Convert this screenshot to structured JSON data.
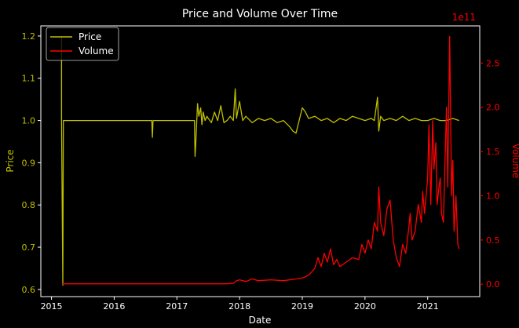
{
  "chart_data": {
    "type": "line",
    "title": "Price and Volume Over Time",
    "xlabel": "Date",
    "x_ticks": [
      "2015",
      "2016",
      "2017",
      "2018",
      "2019",
      "2020",
      "2021"
    ],
    "xlim": [
      2014.83,
      2021.83
    ],
    "left_axis": {
      "ylabel": "Price",
      "ylim": [
        0.583,
        1.224
      ],
      "ticks": [
        0.6,
        0.7,
        0.8,
        0.9,
        1.0,
        1.1,
        1.2
      ],
      "tick_labels": [
        "0.6",
        "0.7",
        "0.8",
        "0.9",
        "1.0",
        "1.1",
        "1.2"
      ]
    },
    "right_axis": {
      "ylabel": "Volume",
      "offset_label": "1e11",
      "ylim": [
        -0.14,
        2.92
      ],
      "ticks": [
        0.0,
        0.5,
        1.0,
        1.5,
        2.0,
        2.5
      ],
      "tick_labels": [
        "0.0",
        "0.5",
        "1.0",
        "1.5",
        "2.0",
        "2.5"
      ]
    },
    "grid": false,
    "legend_position": "top-left",
    "background_color": "#000000",
    "series": [
      {
        "name": "Price",
        "axis": "left",
        "color": "#bfbf00",
        "x": [
          2015.16,
          2015.16,
          2015.18,
          2015.19,
          2016.0,
          2016.5,
          2016.6,
          2016.61,
          2016.62,
          2017.0,
          2017.28,
          2017.29,
          2017.3,
          2017.31,
          2017.33,
          2017.35,
          2017.38,
          2017.4,
          2017.42,
          2017.45,
          2017.48,
          2017.5,
          2017.55,
          2017.6,
          2017.65,
          2017.7,
          2017.75,
          2017.8,
          2017.85,
          2017.9,
          2017.93,
          2017.95,
          2018.0,
          2018.05,
          2018.1,
          2018.2,
          2018.3,
          2018.4,
          2018.5,
          2018.6,
          2018.7,
          2018.8,
          2018.85,
          2018.9,
          2018.95,
          2019.0,
          2019.05,
          2019.1,
          2019.2,
          2019.3,
          2019.4,
          2019.5,
          2019.6,
          2019.7,
          2019.8,
          2019.9,
          2020.0,
          2020.1,
          2020.15,
          2020.2,
          2020.22,
          2020.25,
          2020.3,
          2020.4,
          2020.5,
          2020.6,
          2020.7,
          2020.8,
          2020.9,
          2021.0,
          2021.1,
          2021.2,
          2021.3,
          2021.4,
          2021.5
        ],
        "y": [
          1.2,
          1.0,
          0.61,
          1.0,
          1.0,
          1.0,
          1.0,
          0.96,
          1.0,
          1.0,
          1.0,
          0.915,
          0.94,
          0.975,
          1.04,
          1.01,
          1.03,
          0.99,
          1.02,
          1.0,
          1.01,
          1.005,
          0.995,
          1.02,
          1.0,
          1.035,
          0.995,
          1.0,
          1.01,
          1.0,
          1.075,
          1.005,
          1.045,
          1.0,
          1.01,
          0.995,
          1.005,
          1.0,
          1.005,
          0.995,
          1.0,
          0.985,
          0.975,
          0.97,
          1.0,
          1.03,
          1.02,
          1.005,
          1.01,
          1.0,
          1.005,
          0.995,
          1.005,
          1.0,
          1.01,
          1.005,
          1.0,
          1.005,
          1.0,
          1.055,
          0.975,
          1.01,
          1.0,
          1.005,
          1.0,
          1.01,
          1.0,
          1.005,
          1.0,
          1.0,
          1.005,
          1.0,
          1.0,
          1.005,
          1.0
        ]
      },
      {
        "name": "Volume",
        "axis": "right",
        "color": "#ff0000",
        "x": [
          2015.17,
          2015.2,
          2016.0,
          2017.0,
          2017.8,
          2017.9,
          2017.95,
          2018.0,
          2018.1,
          2018.2,
          2018.3,
          2018.5,
          2018.7,
          2018.9,
          2019.0,
          2019.1,
          2019.2,
          2019.25,
          2019.3,
          2019.35,
          2019.4,
          2019.45,
          2019.5,
          2019.55,
          2019.6,
          2019.7,
          2019.8,
          2019.9,
          2019.95,
          2020.0,
          2020.05,
          2020.1,
          2020.15,
          2020.2,
          2020.22,
          2020.25,
          2020.3,
          2020.35,
          2020.4,
          2020.45,
          2020.5,
          2020.55,
          2020.6,
          2020.65,
          2020.7,
          2020.72,
          2020.75,
          2020.8,
          2020.85,
          2020.9,
          2020.92,
          2020.95,
          2021.0,
          2021.02,
          2021.05,
          2021.08,
          2021.1,
          2021.13,
          2021.15,
          2021.18,
          2021.2,
          2021.22,
          2021.25,
          2021.28,
          2021.3,
          2021.32,
          2021.35,
          2021.38,
          2021.4,
          2021.42,
          2021.45,
          2021.48,
          2021.5
        ],
        "y": [
          0.005,
          0.005,
          0.005,
          0.005,
          0.005,
          0.01,
          0.04,
          0.05,
          0.03,
          0.06,
          0.04,
          0.05,
          0.04,
          0.06,
          0.07,
          0.1,
          0.18,
          0.3,
          0.2,
          0.35,
          0.25,
          0.4,
          0.22,
          0.28,
          0.2,
          0.25,
          0.3,
          0.28,
          0.45,
          0.35,
          0.5,
          0.4,
          0.7,
          0.6,
          1.1,
          0.7,
          0.55,
          0.85,
          0.95,
          0.5,
          0.3,
          0.2,
          0.45,
          0.35,
          0.65,
          0.8,
          0.5,
          0.6,
          0.9,
          0.7,
          1.05,
          0.8,
          1.2,
          1.8,
          0.9,
          1.85,
          1.3,
          1.6,
          0.9,
          1.1,
          1.2,
          0.8,
          0.7,
          1.5,
          2.0,
          1.1,
          2.8,
          1.0,
          1.4,
          0.6,
          1.0,
          0.45,
          0.4
        ]
      }
    ]
  }
}
